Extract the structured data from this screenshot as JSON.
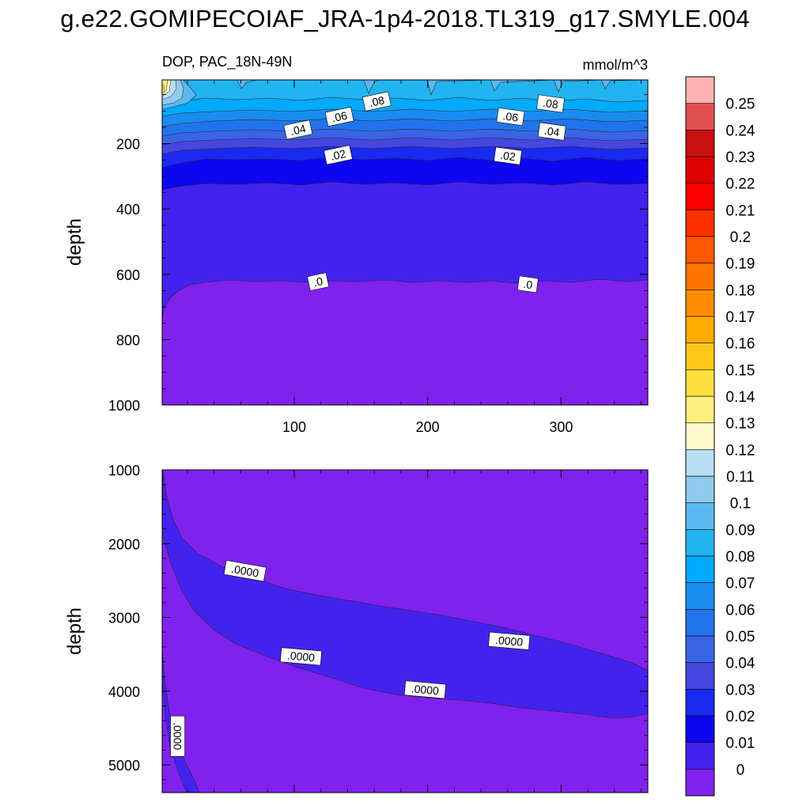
{
  "page": {
    "title": "g.e22.GOMIPECOIAF_JRA-1p4-2018.TL319_g17.SMYLE.004"
  },
  "chart_data": [
    {
      "type": "contour",
      "panel": "upper",
      "left_title": "DOP, PAC_18N-49N",
      "right_title": "mmol/m^3",
      "xlabel": "",
      "ylabel": "depth",
      "xlim": [
        1,
        365
      ],
      "ylim": [
        1000,
        5
      ],
      "y_reversed": true,
      "xticks": [
        100,
        200,
        300
      ],
      "yticks": [
        200,
        400,
        600,
        800,
        1000
      ],
      "contour_labels": [
        {
          "text": ".08",
          "x": 162,
          "depth": 73
        },
        {
          "text": ".08",
          "x": 292,
          "depth": 80
        },
        {
          "text": ".06",
          "x": 134,
          "depth": 120
        },
        {
          "text": ".06",
          "x": 262,
          "depth": 120
        },
        {
          "text": ".04",
          "x": 103,
          "depth": 160
        },
        {
          "text": ".04",
          "x": 293,
          "depth": 165
        },
        {
          "text": ".02",
          "x": 133,
          "depth": 237
        },
        {
          "text": ".02",
          "x": 260,
          "depth": 240
        },
        {
          "text": ".0",
          "x": 118,
          "depth": 625
        },
        {
          "text": ".0",
          "x": 275,
          "depth": 633
        }
      ]
    },
    {
      "type": "contour",
      "panel": "lower",
      "xlabel": "",
      "ylabel": "depth",
      "xlim": [
        1,
        365
      ],
      "ylim": [
        5375,
        1000
      ],
      "y_reversed": true,
      "xticks": [
        100,
        200,
        300
      ],
      "yticks": [
        1000,
        2000,
        3000,
        4000,
        5000
      ],
      "contour_labels": [
        {
          "text": ".0000",
          "x": 63,
          "depth": 2380
        },
        {
          "text": ".0000",
          "x": 261,
          "depth": 3330
        },
        {
          "text": ".0000",
          "x": 105,
          "depth": 3540
        },
        {
          "text": ".0000",
          "x": 198,
          "depth": 3990
        },
        {
          "text": ".0000",
          "x": 12,
          "depth": 4610
        }
      ]
    }
  ],
  "colorbar": {
    "labels": [
      "0.25",
      "0.24",
      "0.23",
      "0.22",
      "0.21",
      "0.2",
      "0.19",
      "0.18",
      "0.17",
      "0.16",
      "0.15",
      "0.14",
      "0.13",
      "0.12",
      "0.11",
      "0.1",
      "0.09",
      "0.08",
      "0.07",
      "0.06",
      "0.05",
      "0.04",
      "0.03",
      "0.02",
      "0.01",
      "0"
    ],
    "colors": [
      "#ffb3b3",
      "#e05050",
      "#c81010",
      "#e00000",
      "#ff0000",
      "#ff3000",
      "#ff5800",
      "#ff7400",
      "#ff8c00",
      "#ffab00",
      "#ffc81a",
      "#ffe040",
      "#fff080",
      "#fffacd",
      "#b8def4",
      "#90caee",
      "#5ab8f0",
      "#22b4f0",
      "#00aaff",
      "#1a8cf0",
      "#2274ec",
      "#3a64e6",
      "#4646e0",
      "#1a2af0",
      "#0e06f0",
      "#4422ee",
      "#8022ee"
    ]
  }
}
